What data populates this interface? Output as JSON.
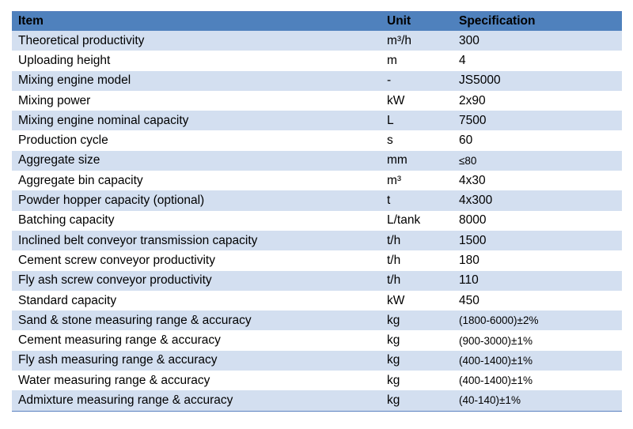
{
  "header": {
    "item": "Item",
    "unit": "Unit",
    "spec": "Specification"
  },
  "rows": [
    {
      "item": "Theoretical productivity",
      "unit": "m³/h",
      "spec": "300"
    },
    {
      "item": "Uploading height",
      "unit": "m",
      "spec": "4"
    },
    {
      "item": "Mixing engine model",
      "unit": "-",
      "spec": "JS5000"
    },
    {
      "item": "Mixing power",
      "unit": "kW",
      "spec": "2x90"
    },
    {
      "item": "Mixing engine nominal capacity",
      "unit": "L",
      "spec": "7500"
    },
    {
      "item": "Production cycle",
      "unit": "s",
      "spec": "60"
    },
    {
      "item": "Aggregate size",
      "unit": "mm",
      "spec": "≤80"
    },
    {
      "item": "Aggregate bin capacity",
      "unit": "m³",
      "spec": "4x30"
    },
    {
      "item": "Powder hopper capacity (optional)",
      "unit": "t",
      "spec": "4x300"
    },
    {
      "item": "Batching capacity",
      "unit": "L/tank",
      "spec": "8000"
    },
    {
      "item": "Inclined belt conveyor transmission capacity",
      "unit": "t/h",
      "spec": "1500"
    },
    {
      "item": "Cement screw conveyor productivity",
      "unit": "t/h",
      "spec": "180"
    },
    {
      "item": "Fly ash screw conveyor productivity",
      "unit": "t/h",
      "spec": "110"
    },
    {
      "item": "Standard capacity",
      "unit": "kW",
      "spec": "450"
    },
    {
      "item": "Sand & stone measuring range & accuracy",
      "unit": "kg",
      "spec": "(1800-6000)±2%"
    },
    {
      "item": "Cement measuring range & accuracy",
      "unit": "kg",
      "spec": "(900-3000)±1%"
    },
    {
      "item": "Fly ash measuring range & accuracy",
      "unit": "kg",
      "spec": "(400-1400)±1%"
    },
    {
      "item": "Water measuring range & accuracy",
      "unit": "kg",
      "spec": "(400-1400)±1%"
    },
    {
      "item": "Admixture measuring range & accuracy",
      "unit": "kg",
      "spec": "(40-140)±1%"
    }
  ]
}
